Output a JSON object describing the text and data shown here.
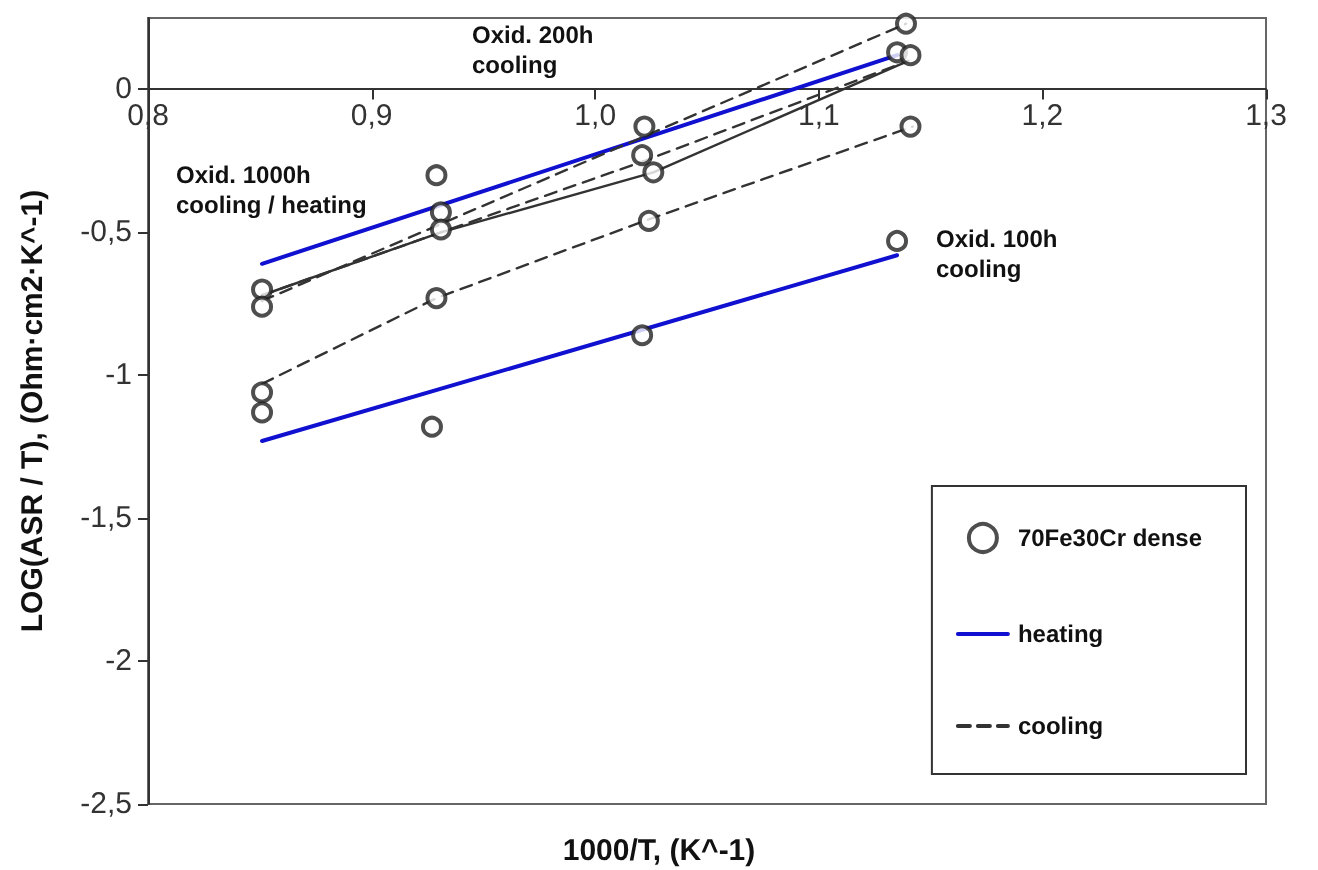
{
  "chart_data": {
    "type": "scatter",
    "xlabel": "1000/T, (K^-1)",
    "ylabel": "LOG(ASR / T), (Ohm·cm2·K^-1)",
    "xlim": [
      0.8,
      1.3
    ],
    "ylim": [
      -2.5,
      0.25
    ],
    "xticks": [
      {
        "value": 0.8,
        "label": "0,8"
      },
      {
        "value": 0.9,
        "label": "0,9"
      },
      {
        "value": 1.0,
        "label": "1,0"
      },
      {
        "value": 1.1,
        "label": "1,1"
      },
      {
        "value": 1.2,
        "label": "1,2"
      },
      {
        "value": 1.3,
        "label": "1,3"
      }
    ],
    "yticks": [
      {
        "value": 0,
        "label": "0"
      },
      {
        "value": -0.5,
        "label": "-0,5"
      },
      {
        "value": -1,
        "label": "-1"
      },
      {
        "value": -1.5,
        "label": "-1,5"
      },
      {
        "value": -2,
        "label": "-2"
      },
      {
        "value": -2.5,
        "label": "-2,5"
      }
    ],
    "grid": false,
    "legend": "bottom right",
    "series": [
      {
        "name": "70Fe30Cr dense",
        "marker": "circle",
        "color": "#222222",
        "x": [
          0.851,
          0.851,
          0.851,
          0.851,
          0.929,
          0.931,
          0.931,
          0.929,
          0.927,
          1.022,
          1.021,
          1.026,
          1.024,
          1.021,
          1.139,
          1.135,
          1.141,
          1.141,
          1.135
        ],
        "values": [
          -0.7,
          -0.76,
          -1.06,
          -1.13,
          -0.3,
          -0.43,
          -0.49,
          -0.73,
          -1.18,
          -0.13,
          -0.23,
          -0.29,
          -0.46,
          -0.86,
          0.23,
          0.13,
          0.12,
          -0.13,
          -0.53
        ]
      },
      {
        "name": "heating",
        "type": "line",
        "marker": "none",
        "line_style": "solid",
        "color": "#1010d0",
        "x": [
          0.851,
          1.135
        ],
        "values": [
          -0.61,
          0.12
        ]
      },
      {
        "type": "line",
        "marker": "none",
        "line_style": "solid",
        "color": "#1010d0",
        "x": [
          0.851,
          1.135
        ],
        "values": [
          -1.23,
          -0.58
        ]
      },
      {
        "type": "line",
        "marker": "none",
        "line_style": "solid",
        "color": "#333333",
        "x": [
          0.851,
          0.931,
          1.026,
          1.14
        ],
        "values": [
          -0.72,
          -0.5,
          -0.29,
          0.1
        ]
      },
      {
        "name": "cooling",
        "type": "line",
        "marker": "none",
        "line_style": "dashed",
        "color": "#333333",
        "x": [
          0.851,
          1.139
        ],
        "values": [
          -0.74,
          0.23
        ]
      },
      {
        "type": "line",
        "marker": "none",
        "line_style": "dashed",
        "color": "#333333",
        "x": [
          0.851,
          1.022,
          1.14
        ],
        "values": [
          -0.72,
          -0.25,
          0.1
        ]
      },
      {
        "type": "line",
        "marker": "none",
        "line_style": "dashed",
        "color": "#333333",
        "x": [
          0.851,
          0.929,
          1.022,
          1.142
        ],
        "values": [
          -1.03,
          -0.73,
          -0.46,
          -0.13
        ]
      }
    ],
    "annotations": [
      "Oxid. 200h cooling",
      "Oxid. 1000h cooling / heating",
      "Oxid. 100h cooling"
    ]
  }
}
